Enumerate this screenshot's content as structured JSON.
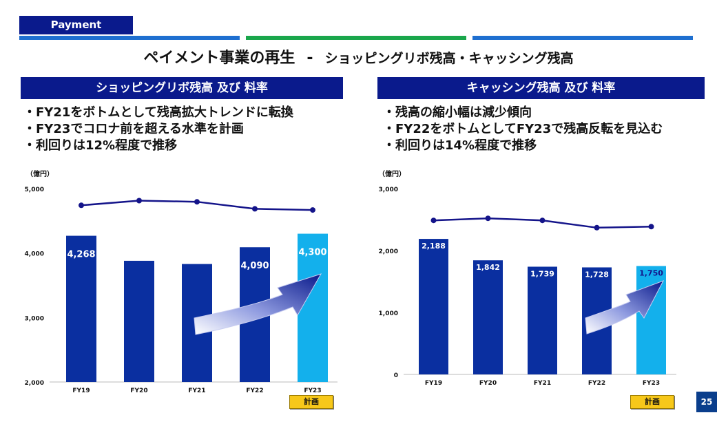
{
  "header": {
    "tag": "Payment",
    "title_main": "ペイメント事業の再生",
    "title_dash": "-",
    "title_sub": "ショッピングリボ残高・キャッシング残高"
  },
  "left": {
    "heading": "ショッピングリボ残高 及び 料率",
    "bullets": [
      "・FY21をボトムとして残高拡大トレンドに転換",
      "・FY23でコロナ前を超える水準を計画",
      "・利回りは12%程度で推移"
    ],
    "unit": "（億円）",
    "plan_label": "計画"
  },
  "right": {
    "heading": "キャッシング残高 及び 料率",
    "bullets": [
      "・残高の縮小幅は減少傾向",
      "・FY22をボトムとしてFY23で残高反転を見込む",
      "・利回りは14%程度で推移"
    ],
    "unit": "（億円）",
    "plan_label": "計画"
  },
  "page_number": "25",
  "colors": {
    "bar_actual": "#0a2fa0",
    "bar_plan": "#13b0ec",
    "line": "#14148a",
    "heading_bg": "#0a1a8c"
  },
  "chart_data": [
    {
      "type": "bar",
      "categories": [
        "FY19",
        "FY20",
        "FY21",
        "FY22",
        "FY23"
      ],
      "values": [
        4268,
        3880,
        3830,
        4090,
        4300
      ],
      "data_labels": [
        "4,268",
        "",
        "",
        "4,090",
        "4,300"
      ],
      "highlight_last": true,
      "ylim": [
        2000,
        5000
      ],
      "yticks": [
        "2,000",
        "3,000",
        "4,000",
        "5,000"
      ],
      "yticks_values": [
        2000,
        3000,
        4000,
        5000
      ],
      "overlay_line": {
        "name": "",
        "relative_values": [
          0.755,
          0.775,
          0.77,
          0.74,
          0.735
        ]
      },
      "trend_arrow": true,
      "title": "",
      "xlabel": "",
      "ylabel": "（億円）"
    },
    {
      "type": "bar",
      "categories": [
        "FY19",
        "FY20",
        "FY21",
        "FY22",
        "FY23"
      ],
      "values": [
        2188,
        1842,
        1739,
        1728,
        1750
      ],
      "data_labels": [
        "2,188",
        "1,842",
        "1,739",
        "1,728",
        "1,750"
      ],
      "highlight_last": true,
      "ylim": [
        0,
        3000
      ],
      "yticks": [
        "0",
        "1,000",
        "2,000",
        "3,000"
      ],
      "yticks_values": [
        0,
        1000,
        2000,
        3000
      ],
      "overlay_line": {
        "name": "",
        "relative_values": [
          0.74,
          0.75,
          0.74,
          0.705,
          0.71
        ]
      },
      "trend_arrow": true,
      "title": "",
      "xlabel": "",
      "ylabel": "（億円）"
    }
  ]
}
